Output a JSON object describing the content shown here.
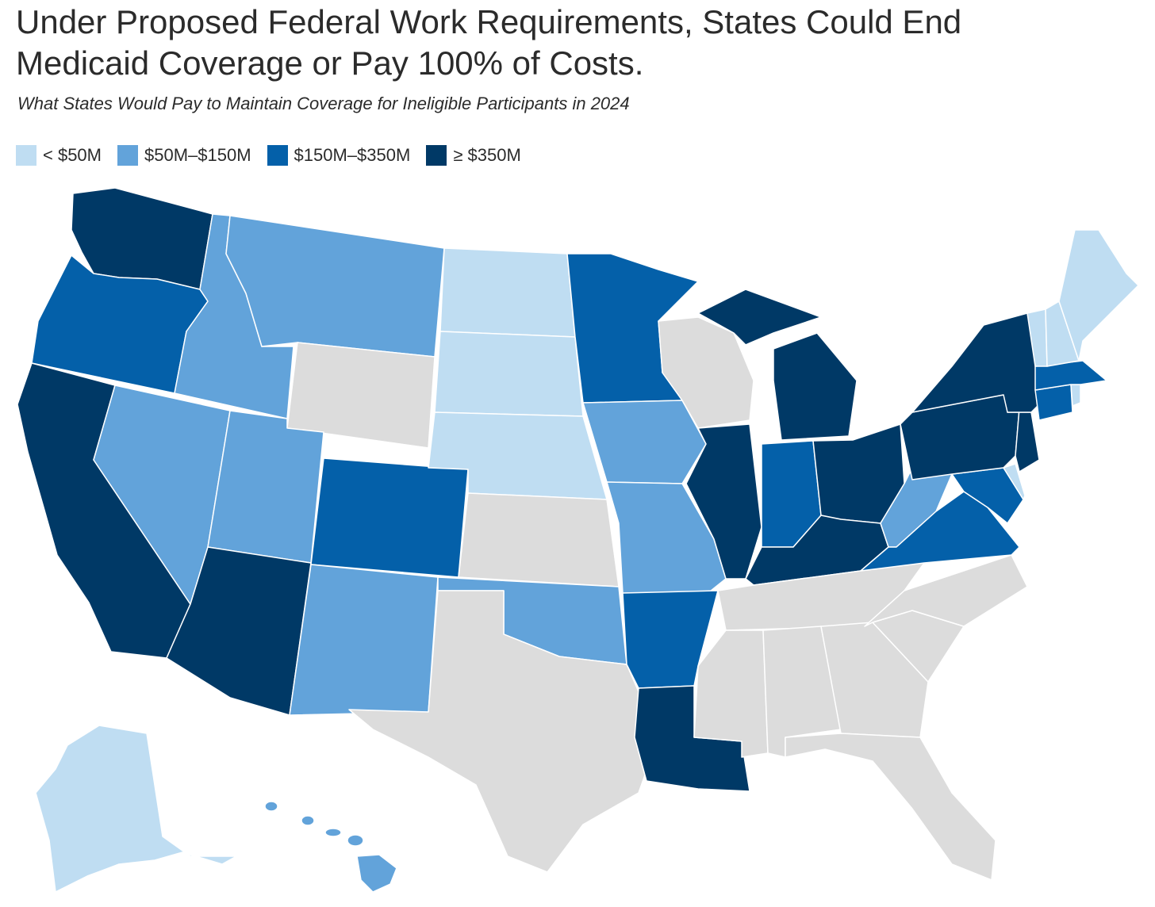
{
  "title_line1": "Under Proposed Federal Work Requirements, States Could End",
  "title_line2": "Medicaid Coverage or Pay 100% of Costs.",
  "subtitle": "What States Would Pay to Maintain Coverage for Ineligible Participants in 2024",
  "legend": [
    {
      "label": "< $50M",
      "color": "#bfddf2"
    },
    {
      "label": "$50M–$150M",
      "color": "#62a3da"
    },
    {
      "label": "$150M–$350M",
      "color": "#0460a9"
    },
    {
      "label": "≥ $350M",
      "color": "#003966"
    }
  ],
  "no_data_color": "#dcdcdc",
  "state_categories": {
    "AK": 0,
    "ND": 0,
    "SD": 0,
    "NE": 0,
    "ME": 0,
    "VT": 0,
    "NH": 0,
    "RI": 0,
    "DE": 0,
    "MT": 1,
    "ID": 1,
    "NV": 1,
    "UT": 1,
    "NM": 1,
    "OK": 1,
    "IA": 1,
    "MO": 1,
    "WV": 1,
    "HI": 1,
    "OR": 2,
    "CO": 2,
    "MN": 2,
    "AR": 2,
    "IN": 2,
    "VA": 2,
    "MD": 2,
    "MA": 2,
    "CT": 2,
    "WA": 3,
    "CA": 3,
    "AZ": 3,
    "LA": 3,
    "IL": 3,
    "MI": 3,
    "OH": 3,
    "KY": 3,
    "PA": 3,
    "NY": 3,
    "NJ": 3,
    "WY": -1,
    "KS": -1,
    "TX": -1,
    "WI": -1,
    "MS": -1,
    "AL": -1,
    "GA": -1,
    "FL": -1,
    "TN": -1,
    "SC": -1,
    "NC": -1
  }
}
